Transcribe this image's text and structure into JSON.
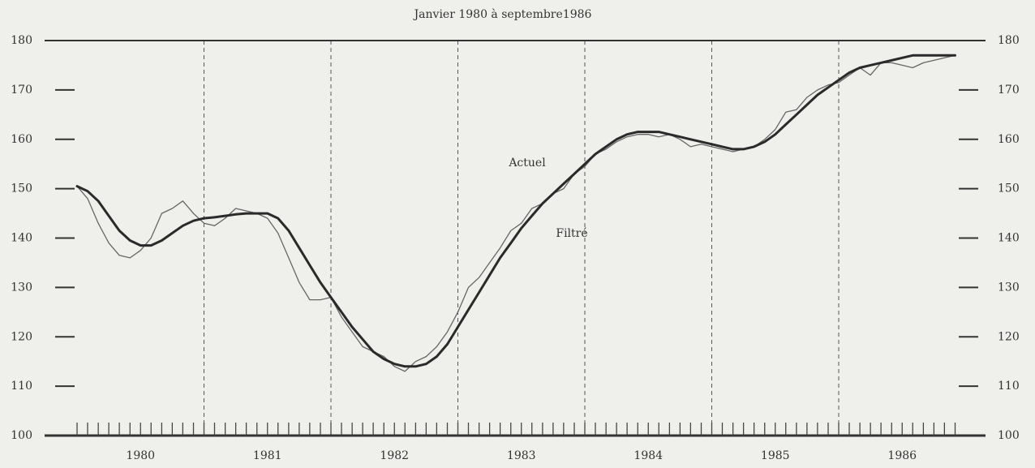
{
  "chart_data": {
    "type": "line",
    "title": "Janvier 1980 à septembre1986",
    "annotations": [
      "Actuel",
      "Filtré"
    ],
    "x": [
      1980,
      1980.083,
      1980.167,
      1980.25,
      1980.333,
      1980.417,
      1980.5,
      1980.583,
      1980.667,
      1980.75,
      1980.833,
      1980.917,
      1981,
      1981.083,
      1981.167,
      1981.25,
      1981.333,
      1981.417,
      1981.5,
      1981.583,
      1981.667,
      1981.75,
      1981.833,
      1981.917,
      1982,
      1982.083,
      1982.167,
      1982.25,
      1982.333,
      1982.417,
      1982.5,
      1982.583,
      1982.667,
      1982.75,
      1982.833,
      1982.917,
      1983,
      1983.083,
      1983.167,
      1983.25,
      1983.333,
      1983.417,
      1983.5,
      1983.583,
      1983.667,
      1983.75,
      1983.833,
      1983.917,
      1984,
      1984.083,
      1984.167,
      1984.25,
      1984.333,
      1984.417,
      1984.5,
      1984.583,
      1984.667,
      1984.75,
      1984.833,
      1984.917,
      1985,
      1985.083,
      1985.167,
      1985.25,
      1985.333,
      1985.417,
      1985.5,
      1985.583,
      1985.667,
      1985.75,
      1985.833,
      1985.917,
      1986,
      1986.083,
      1986.167,
      1986.25,
      1986.333,
      1986.417,
      1986.5,
      1986.583,
      1986.667,
      1986.75,
      1986.833,
      1986.917
    ],
    "series": [
      {
        "name": "Actuel",
        "color": "#666666",
        "line_width": 1.3,
        "values": [
          150.5,
          148,
          143,
          139,
          136.5,
          136,
          137.5,
          140,
          145,
          146,
          147.5,
          145,
          143,
          142.5,
          144,
          146,
          145.5,
          145,
          144,
          141,
          136,
          131,
          127.5,
          127.5,
          128,
          124,
          121,
          118,
          117,
          116,
          114,
          113,
          115,
          116,
          118,
          121,
          125,
          130,
          132,
          135,
          138,
          141.5,
          143,
          146,
          147,
          149,
          150,
          153,
          154.5,
          157,
          158,
          159.5,
          160.5,
          161,
          161,
          160.5,
          161,
          160,
          158.5,
          159,
          158.5,
          158,
          157.5,
          158,
          158.5,
          160,
          162,
          165.5,
          166,
          168.5,
          170,
          171,
          171.5,
          173,
          174.5,
          173,
          175.5,
          175.5,
          175,
          174.5,
          175.5,
          176,
          176.5,
          177
        ]
      },
      {
        "name": "Filtré",
        "color": "#2a2a2a",
        "line_width": 3,
        "values": [
          150.5,
          149.5,
          147.5,
          144.5,
          141.5,
          139.5,
          138.5,
          138.5,
          139.5,
          141,
          142.5,
          143.5,
          144,
          144.2,
          144.5,
          144.8,
          145,
          145,
          145,
          144,
          141.5,
          138,
          134.5,
          131,
          128,
          125,
          122,
          119.5,
          117,
          115.5,
          114.5,
          114,
          114,
          114.5,
          116,
          118.5,
          122,
          125.5,
          129,
          132.5,
          136,
          139,
          142,
          144.5,
          147,
          149,
          151,
          153,
          155,
          157,
          158.5,
          160,
          161,
          161.5,
          161.5,
          161.5,
          161,
          160.5,
          160,
          159.5,
          159,
          158.5,
          158,
          158,
          158.5,
          159.5,
          161,
          163,
          165,
          167,
          169,
          170.5,
          172,
          173.5,
          174.5,
          175,
          175.5,
          176,
          176.5,
          177,
          177,
          177,
          177,
          177
        ]
      }
    ],
    "xlim": [
      1980,
      1987
    ],
    "xticks": [
      {
        "value": 1980.5,
        "label": "1980"
      },
      {
        "value": 1981.5,
        "label": "1981"
      },
      {
        "value": 1982.5,
        "label": "1982"
      },
      {
        "value": 1983.5,
        "label": "1983"
      },
      {
        "value": 1984.5,
        "label": "1984"
      },
      {
        "value": 1985.5,
        "label": "1985"
      },
      {
        "value": 1986.5,
        "label": "1986"
      }
    ],
    "xgrid": [
      1981,
      1982,
      1983,
      1984,
      1985,
      1986
    ],
    "ylim": [
      100,
      180
    ],
    "yticks": [
      100,
      110,
      120,
      130,
      140,
      150,
      160,
      170,
      180
    ]
  }
}
